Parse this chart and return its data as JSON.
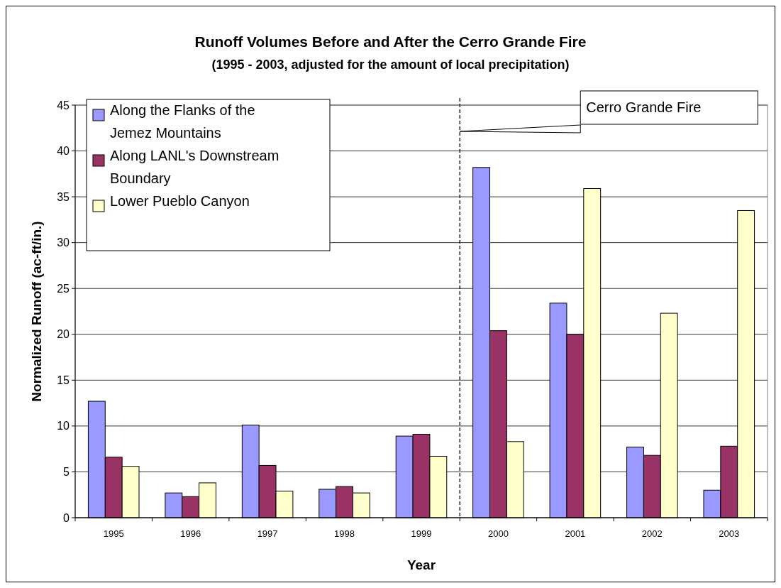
{
  "chart_data": {
    "type": "bar",
    "title": "Runoff Volumes Before and After the Cerro Grande Fire",
    "subtitle": "(1995 - 2003, adjusted for the amount of local precipitation)",
    "xlabel": "Year",
    "ylabel": "Normalized Runoff (ac-ft/in.)",
    "categories": [
      "1995",
      "1996",
      "1997",
      "1998",
      "1999",
      "2000",
      "2001",
      "2002",
      "2003"
    ],
    "series": [
      {
        "name": "Along the Flanks of the Jemez Mountains",
        "color": "#9999ff",
        "values": [
          12.7,
          2.7,
          10.1,
          3.1,
          8.9,
          38.2,
          23.4,
          7.7,
          3.0
        ]
      },
      {
        "name": "Along LANL's Downstream Boundary",
        "color": "#993366",
        "values": [
          6.6,
          2.3,
          5.7,
          3.4,
          9.1,
          20.4,
          20.0,
          6.8,
          7.8
        ]
      },
      {
        "name": "Lower Pueblo Canyon",
        "color": "#ffffcc",
        "values": [
          5.6,
          3.8,
          2.9,
          2.7,
          6.7,
          8.3,
          35.9,
          22.3,
          33.5
        ]
      }
    ],
    "ylim": [
      0,
      45
    ],
    "yticks": [
      0,
      5,
      10,
      15,
      20,
      25,
      30,
      35,
      40,
      45
    ],
    "grid": "y",
    "legend": "top left",
    "ref_lines": [
      {
        "axis": "x",
        "value": "2000",
        "label": "Cerro Grande Fire",
        "line_style": "dashed"
      }
    ]
  }
}
